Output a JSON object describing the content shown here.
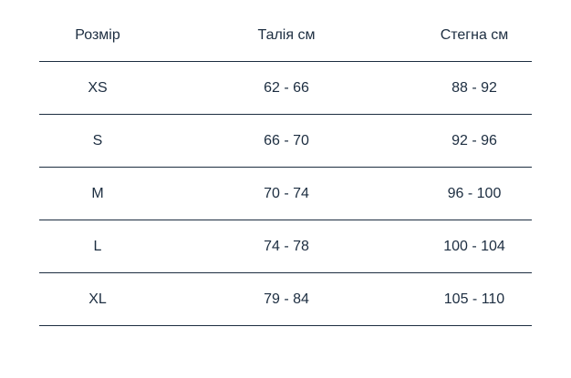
{
  "table": {
    "headers": [
      "Розмір",
      "Талія см",
      "Стегна см"
    ],
    "rows": [
      [
        "XS",
        "62 - 66",
        "88 - 92"
      ],
      [
        "S",
        "66 - 70",
        "92 - 96"
      ],
      [
        "M",
        "70 - 74",
        "96 - 100"
      ],
      [
        "L",
        "74 - 78",
        "100 - 104"
      ],
      [
        "XL",
        "79 - 84",
        "105 - 110"
      ]
    ]
  },
  "colors": {
    "text": "#1c2d40",
    "border": "#1c2d40",
    "background": "#ffffff"
  }
}
